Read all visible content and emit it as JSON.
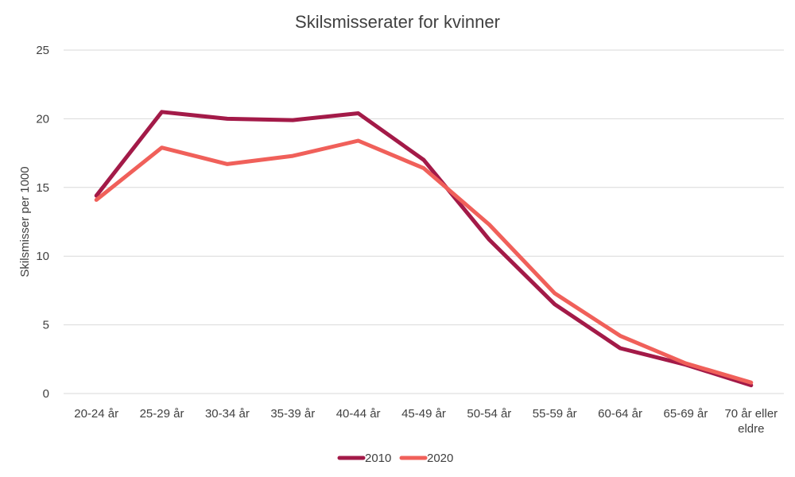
{
  "chart_data": {
    "type": "line",
    "title": "Skilsmisserater for kvinner",
    "xlabel": "",
    "ylabel": "Skilsmisser per 1000",
    "ylim": [
      0,
      25
    ],
    "yticks": [
      0,
      5,
      10,
      15,
      20,
      25
    ],
    "grid": true,
    "legend_position": "bottom",
    "categories": [
      "20-24 år",
      "25-29 år",
      "30-34 år",
      "35-39 år",
      "40-44 år",
      "45-49 år",
      "50-54 år",
      "55-59 år",
      "60-64 år",
      "65-69 år",
      "70 år eller eldre"
    ],
    "series": [
      {
        "name": "2010",
        "color": "#a31a48",
        "values": [
          14.4,
          20.5,
          20.0,
          19.9,
          20.4,
          17.0,
          11.2,
          6.5,
          3.3,
          2.1,
          0.6
        ]
      },
      {
        "name": "2020",
        "color": "#f0605a",
        "values": [
          14.1,
          17.9,
          16.7,
          17.3,
          18.4,
          16.4,
          12.3,
          7.3,
          4.2,
          2.2,
          0.8
        ]
      }
    ]
  }
}
